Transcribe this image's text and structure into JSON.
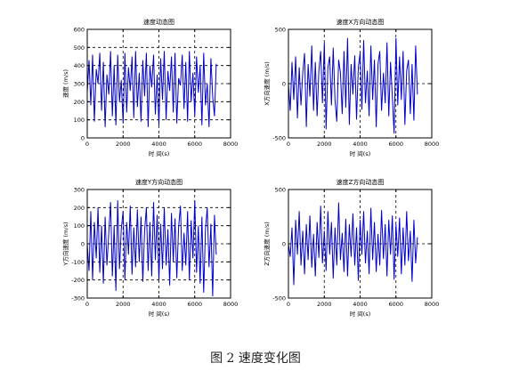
{
  "figure": {
    "caption": "图 2  速度变化图"
  },
  "chart_data": [
    {
      "type": "line",
      "title": "速度动态图",
      "xlabel": "时 间(s)",
      "ylabel": "速度 (m/s)",
      "xlim": [
        0,
        8000
      ],
      "ylim": [
        0,
        600
      ],
      "xticks": [
        0,
        2000,
        4000,
        6000,
        8000
      ],
      "xtick_labels": [
        "0",
        "2000",
        "4000",
        "6000",
        "8000"
      ],
      "yticks": [
        0,
        100,
        200,
        300,
        400,
        500,
        600
      ],
      "ytick_labels": [
        "0",
        "100",
        "200",
        "300",
        "400",
        "500",
        "600"
      ],
      "grid": "dashed",
      "color": "#0000cc",
      "series": [
        {
          "x": [
            0,
            100,
            200,
            300,
            400,
            500,
            600,
            700,
            800,
            900,
            1000,
            1100,
            1200,
            1300,
            1400,
            1500,
            1600,
            1700,
            1800,
            1900,
            2000,
            2100,
            2200,
            2300,
            2400,
            2500,
            2600,
            2700,
            2800,
            2900,
            3000,
            3100,
            3200,
            3300,
            3400,
            3500,
            3600,
            3700,
            3800,
            3900,
            4000,
            4100,
            4200,
            4300,
            4400,
            4500,
            4600,
            4700,
            4800,
            4900,
            5000,
            5100,
            5200,
            5300,
            5400,
            5500,
            5600,
            5700,
            5800,
            5900,
            6000,
            6100,
            6200,
            6300,
            6400,
            6500,
            6600,
            6700,
            6800,
            6900,
            7000,
            7100,
            7200
          ],
          "values": [
            250,
            430,
            180,
            460,
            90,
            380,
            300,
            470,
            150,
            420,
            60,
            350,
            240,
            480,
            120,
            400,
            70,
            460,
            200,
            320,
            80,
            470,
            140,
            390,
            260,
            450,
            110,
            480,
            170,
            360,
            90,
            430,
            230,
            470,
            60,
            400,
            280,
            460,
            130,
            350,
            70,
            440,
            210,
            480,
            100,
            370,
            260,
            450,
            140,
            470,
            80,
            330,
            290,
            460,
            160,
            420,
            90,
            480,
            200,
            360,
            120,
            450,
            250,
            400,
            70,
            470,
            180,
            300,
            60,
            440,
            230,
            120,
            410
          ]
        }
      ]
    },
    {
      "type": "line",
      "title": "速度X方向动态图",
      "xlabel": "时 间(s)",
      "ylabel": "X方向速度 (m/s)",
      "xlim": [
        0,
        8000
      ],
      "ylim": [
        -500,
        500
      ],
      "xticks": [
        0,
        2000,
        4000,
        6000,
        8000
      ],
      "xtick_labels": [
        "0",
        "2000",
        "4000",
        "6000",
        "8000"
      ],
      "yticks": [
        -500,
        0,
        500
      ],
      "ytick_labels": [
        "-500",
        "0",
        "500"
      ],
      "grid": "dashed",
      "color": "#0000cc",
      "series": [
        {
          "x": [
            0,
            100,
            200,
            300,
            400,
            500,
            600,
            700,
            800,
            900,
            1000,
            1100,
            1200,
            1300,
            1400,
            1500,
            1600,
            1700,
            1800,
            1900,
            2000,
            2100,
            2200,
            2300,
            2400,
            2500,
            2600,
            2700,
            2800,
            2900,
            3000,
            3100,
            3200,
            3300,
            3400,
            3500,
            3600,
            3700,
            3800,
            3900,
            4000,
            4100,
            4200,
            4300,
            4400,
            4500,
            4600,
            4700,
            4800,
            4900,
            5000,
            5100,
            5200,
            5300,
            5400,
            5500,
            5600,
            5700,
            5800,
            5900,
            6000,
            6100,
            6200,
            6300,
            6400,
            6500,
            6600,
            6700,
            6800,
            6900,
            7000,
            7100,
            7200
          ],
          "values": [
            0,
            -250,
            200,
            -150,
            250,
            -320,
            150,
            -200,
            100,
            280,
            -400,
            180,
            -120,
            350,
            -250,
            200,
            -300,
            120,
            300,
            -180,
            380,
            -420,
            150,
            250,
            -200,
            330,
            -150,
            -350,
            220,
            100,
            -280,
            300,
            -220,
            420,
            -380,
            180,
            -100,
            260,
            -330,
            150,
            280,
            -240,
            400,
            -180,
            120,
            -300,
            350,
            -150,
            220,
            -400,
            180,
            300,
            -250,
            100,
            -180,
            380,
            -300,
            200,
            -120,
            -460,
            420,
            -200,
            250,
            -150,
            300,
            -380,
            120,
            220,
            -280,
            180,
            -340,
            350,
            -100
          ]
        }
      ]
    },
    {
      "type": "line",
      "title": "速度Y方向动态图",
      "xlabel": "时 间(s)",
      "ylabel": "Y方向速度 (m/s)",
      "xlim": [
        0,
        8000
      ],
      "ylim": [
        -300,
        300
      ],
      "xticks": [
        0,
        2000,
        4000,
        6000,
        8000
      ],
      "xtick_labels": [
        "0",
        "2000",
        "4000",
        "6000",
        "8000"
      ],
      "yticks": [
        -300,
        -200,
        -100,
        0,
        100,
        200,
        300
      ],
      "ytick_labels": [
        "-300",
        "-200",
        "-100",
        "0",
        "100",
        "200",
        "300"
      ],
      "grid": "dashed",
      "color": "#0000cc",
      "series": [
        {
          "x": [
            0,
            100,
            200,
            300,
            400,
            500,
            600,
            700,
            800,
            900,
            1000,
            1100,
            1200,
            1300,
            1400,
            1500,
            1600,
            1700,
            1800,
            1900,
            2000,
            2100,
            2200,
            2300,
            2400,
            2500,
            2600,
            2700,
            2800,
            2900,
            3000,
            3100,
            3200,
            3300,
            3400,
            3500,
            3600,
            3700,
            3800,
            3900,
            4000,
            4100,
            4200,
            4300,
            4400,
            4500,
            4600,
            4700,
            4800,
            4900,
            5000,
            5100,
            5200,
            5300,
            5400,
            5500,
            5600,
            5700,
            5800,
            5900,
            6000,
            6100,
            6200,
            6300,
            6400,
            6500,
            6600,
            6700,
            6800,
            6900,
            7000,
            7100,
            7200
          ],
          "values": [
            0,
            -150,
            180,
            -200,
            120,
            -80,
            200,
            -160,
            100,
            -220,
            150,
            -120,
            60,
            230,
            -180,
            100,
            -260,
            240,
            -140,
            80,
            180,
            -200,
            120,
            -60,
            210,
            -170,
            90,
            -130,
            190,
            -100,
            150,
            -210,
            70,
            200,
            -150,
            120,
            -180,
            230,
            -90,
            160,
            -200,
            110,
            -140,
            200,
            -120,
            80,
            -230,
            170,
            -100,
            140,
            -190,
            90,
            210,
            -150,
            60,
            -120,
            180,
            -200,
            130,
            -80,
            240,
            -160,
            100,
            -220,
            150,
            -270,
            80,
            200,
            -130,
            110,
            -290,
            160,
            -60
          ]
        }
      ]
    },
    {
      "type": "line",
      "title": "速度Z方向动态图",
      "xlabel": "时 间(s)",
      "ylabel": "Z方向速度 (m/s)",
      "xlim": [
        0,
        8000
      ],
      "ylim": [
        -500,
        500
      ],
      "xticks": [
        0,
        2000,
        4000,
        6000,
        8000
      ],
      "xtick_labels": [
        "0",
        "2000",
        "4000",
        "6000",
        "8000"
      ],
      "yticks": [
        -500,
        0,
        500
      ],
      "ytick_labels": [
        "-500",
        "0",
        "500"
      ],
      "grid": "dashed",
      "color": "#0000cc",
      "series": [
        {
          "x": [
            0,
            100,
            200,
            300,
            400,
            500,
            600,
            700,
            800,
            900,
            1000,
            1100,
            1200,
            1300,
            1400,
            1500,
            1600,
            1700,
            1800,
            1900,
            2000,
            2100,
            2200,
            2300,
            2400,
            2500,
            2600,
            2700,
            2800,
            2900,
            3000,
            3100,
            3200,
            3300,
            3400,
            3500,
            3600,
            3700,
            3800,
            3900,
            4000,
            4100,
            4200,
            4300,
            4400,
            4500,
            4600,
            4700,
            4800,
            4900,
            5000,
            5100,
            5200,
            5300,
            5400,
            5500,
            5600,
            5700,
            5800,
            5900,
            6000,
            6100,
            6200,
            6300,
            6400,
            6500,
            6600,
            6700,
            6800,
            6900,
            7000,
            7100,
            7200
          ],
          "values": [
            0,
            -120,
            150,
            -380,
            220,
            -100,
            300,
            -200,
            120,
            -280,
            180,
            -150,
            260,
            -220,
            90,
            -300,
            200,
            -130,
            350,
            -180,
            120,
            -250,
            300,
            -100,
            200,
            -320,
            150,
            -200,
            380,
            -150,
            100,
            -260,
            230,
            -300,
            180,
            -120,
            280,
            -200,
            150,
            -340,
            220,
            -100,
            300,
            -180,
            120,
            -280,
            330,
            -150,
            200,
            -260,
            90,
            -200,
            310,
            -140,
            180,
            -300,
            220,
            -100,
            260,
            -330,
            180,
            -120,
            240,
            -280,
            150,
            -200,
            300,
            -160,
            120,
            -350,
            220,
            -180,
            60
          ]
        }
      ]
    }
  ]
}
